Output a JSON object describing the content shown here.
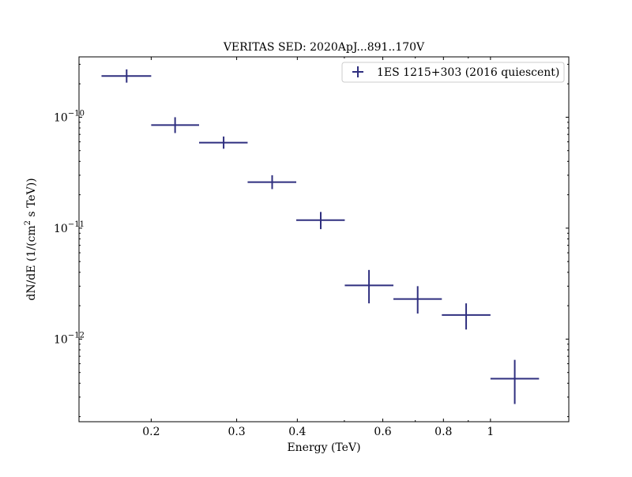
{
  "chart_data": {
    "type": "scatter",
    "title": "VERITAS SED: 2020ApJ...891..170V",
    "xlabel": "Energy (TeV)",
    "ylabel_parts": {
      "before": "dN/dE (1/(cm",
      "sup": "2",
      "after": " s TeV))"
    },
    "xscale": "log",
    "yscale": "log",
    "xlim": [
      0.142,
      1.45
    ],
    "ylim": [
      1.8e-13,
      3.5e-10
    ],
    "x_ticks": [
      {
        "value": 0.2,
        "label": "0.2"
      },
      {
        "value": 0.3,
        "label": "0.3"
      },
      {
        "value": 0.4,
        "label": "0.4"
      },
      {
        "value": 0.6,
        "label": "0.6"
      },
      {
        "value": 0.8,
        "label": "0.8"
      },
      {
        "value": 1.0,
        "label": "1"
      }
    ],
    "y_ticks": [
      {
        "value": 1e-10,
        "mantissa": "10",
        "exponent": "−10"
      },
      {
        "value": 1e-11,
        "mantissa": "10",
        "exponent": "−11"
      },
      {
        "value": 1e-12,
        "mantissa": "10",
        "exponent": "−12"
      }
    ],
    "grid": false,
    "legend_position": "top-right",
    "series": [
      {
        "name": "1ES 1215+303 (2016 quiescent)",
        "color": "#2f2f7f",
        "points": [
          {
            "x": 0.178,
            "xlo": 0.158,
            "xhi": 0.2,
            "y": 2.35e-10,
            "ylo": 2.05e-10,
            "yhi": 2.7e-10
          },
          {
            "x": 0.224,
            "xlo": 0.2,
            "xhi": 0.251,
            "y": 8.5e-11,
            "ylo": 7.2e-11,
            "yhi": 1e-10
          },
          {
            "x": 0.282,
            "xlo": 0.251,
            "xhi": 0.316,
            "y": 5.9e-11,
            "ylo": 5.2e-11,
            "yhi": 6.7e-11
          },
          {
            "x": 0.355,
            "xlo": 0.316,
            "xhi": 0.398,
            "y": 2.6e-11,
            "ylo": 2.25e-11,
            "yhi": 3e-11
          },
          {
            "x": 0.447,
            "xlo": 0.398,
            "xhi": 0.501,
            "y": 1.18e-11,
            "ylo": 9.8e-12,
            "yhi": 1.4e-11
          },
          {
            "x": 0.562,
            "xlo": 0.501,
            "xhi": 0.631,
            "y": 3.05e-12,
            "ylo": 2.1e-12,
            "yhi": 4.2e-12
          },
          {
            "x": 0.708,
            "xlo": 0.631,
            "xhi": 0.794,
            "y": 2.3e-12,
            "ylo": 1.7e-12,
            "yhi": 3e-12
          },
          {
            "x": 0.891,
            "xlo": 0.794,
            "xhi": 1.0,
            "y": 1.65e-12,
            "ylo": 1.22e-12,
            "yhi": 2.1e-12
          },
          {
            "x": 1.122,
            "xlo": 1.0,
            "xhi": 1.259,
            "y": 4.4e-13,
            "ylo": 2.6e-13,
            "yhi": 6.5e-13
          }
        ]
      }
    ]
  }
}
